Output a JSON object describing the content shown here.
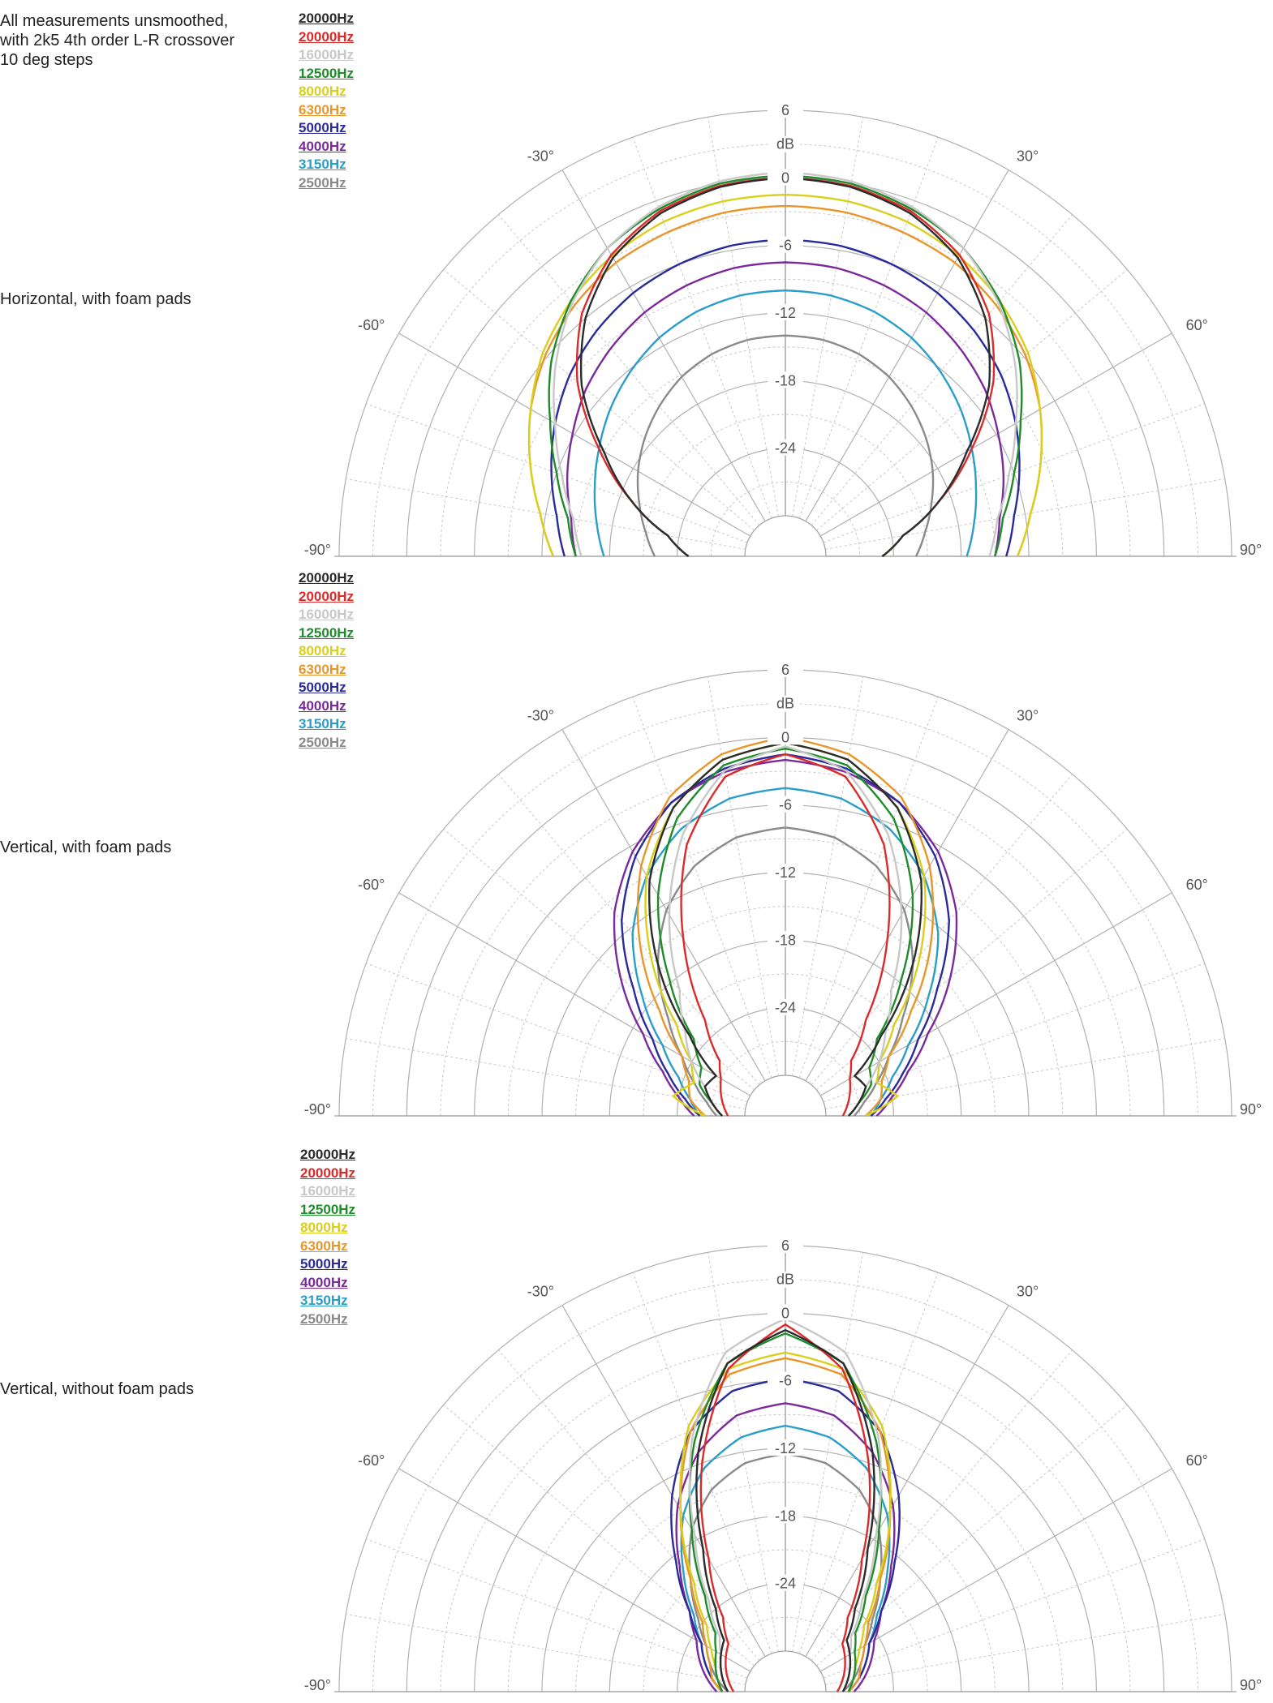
{
  "notes": {
    "line1": "All measurements unsmoothed,",
    "line2": "with 2k5 4th order L-R crossover",
    "line3": "10 deg steps"
  },
  "legend_entries": [
    {
      "label": "20000Hz",
      "color": "#2b2b2b"
    },
    {
      "label": "20000Hz",
      "color": "#d92b2b"
    },
    {
      "label": "16000Hz",
      "color": "#c8c8c8"
    },
    {
      "label": "12500Hz",
      "color": "#1e8c2a"
    },
    {
      "label": "8000Hz",
      "color": "#d9cf1c"
    },
    {
      "label": "6300Hz",
      "color": "#e8962a"
    },
    {
      "label": "5000Hz",
      "color": "#2a2a9a"
    },
    {
      "label": "4000Hz",
      "color": "#7a2a9a"
    },
    {
      "label": "3150Hz",
      "color": "#2a9ec8"
    },
    {
      "label": "2500Hz",
      "color": "#8a8a8a"
    }
  ],
  "chart_data": [
    {
      "type": "polar",
      "section_label": "Horizontal, with foam pads",
      "unit_label": "dB",
      "radial_range": [
        -30,
        6
      ],
      "radial_ticks": [
        "6",
        "0",
        "-6",
        "-12",
        "-18",
        "-24"
      ],
      "angle_range": [
        -90,
        90
      ],
      "angle_step": 10,
      "angle_labels": [
        "-90°",
        "-60°",
        "-30°",
        "30°",
        "60°",
        "90°"
      ],
      "grid": true,
      "series": [
        {
          "name": "20000Hz",
          "color": "#2b2b2b",
          "angles": [
            0,
            10,
            20,
            30,
            40,
            50,
            60,
            70,
            80,
            90
          ],
          "values": [
            0.0,
            -0.3,
            -1.2,
            -3.0,
            -6.0,
            -10.0,
            -15.0,
            -19.0,
            -23.0,
            -25.0
          ]
        },
        {
          "name": "20000Hz",
          "color": "#d92b2b",
          "angles": [
            0,
            10,
            20,
            30,
            40,
            50,
            60,
            70,
            80,
            90
          ],
          "values": [
            0.0,
            -0.2,
            -1.0,
            -2.7,
            -5.5,
            -9.5,
            -14.5,
            -19.0,
            -23.0,
            -25.0
          ]
        },
        {
          "name": "16000Hz",
          "color": "#c8c8c8",
          "angles": [
            0,
            10,
            20,
            30,
            40,
            50,
            60,
            70,
            80,
            90
          ],
          "values": [
            0.5,
            0.2,
            -0.6,
            -2.0,
            -4.2,
            -7.0,
            -10.0,
            -12.5,
            -14.5,
            -15.5
          ]
        },
        {
          "name": "12500Hz",
          "color": "#1e8c2a",
          "angles": [
            0,
            10,
            20,
            30,
            40,
            50,
            60,
            70,
            80,
            90
          ],
          "values": [
            0.2,
            0.0,
            -0.8,
            -2.0,
            -4.0,
            -6.5,
            -9.5,
            -12.0,
            -14.0,
            -15.0
          ]
        },
        {
          "name": "8000Hz",
          "color": "#d9cf1c",
          "angles": [
            0,
            10,
            20,
            30,
            40,
            50,
            60,
            70,
            80,
            90
          ],
          "values": [
            -1.5,
            -1.6,
            -2.0,
            -2.8,
            -4.0,
            -5.5,
            -7.5,
            -9.5,
            -11.5,
            -13.0
          ]
        },
        {
          "name": "6300Hz",
          "color": "#e8962a",
          "angles": [
            0,
            10,
            20,
            30,
            40,
            50,
            60,
            70,
            80,
            90
          ],
          "values": [
            -2.5,
            -2.6,
            -3.0,
            -3.5,
            -4.5,
            -5.8,
            -7.5,
            -9.5,
            -11.5,
            -13.0
          ]
        },
        {
          "name": "5000Hz",
          "color": "#2a2a9a",
          "angles": [
            0,
            10,
            20,
            30,
            40,
            50,
            60,
            70,
            80,
            90
          ],
          "values": [
            -5.5,
            -5.6,
            -6.0,
            -6.6,
            -7.5,
            -8.6,
            -10.0,
            -11.5,
            -13.0,
            -14.0
          ]
        },
        {
          "name": "4000Hz",
          "color": "#7a2a9a",
          "angles": [
            0,
            10,
            20,
            30,
            40,
            50,
            60,
            70,
            80,
            90
          ],
          "values": [
            -7.5,
            -7.6,
            -8.0,
            -8.6,
            -9.5,
            -10.5,
            -11.8,
            -13.0,
            -14.3,
            -15.0
          ]
        },
        {
          "name": "3150Hz",
          "color": "#2a9ec8",
          "angles": [
            0,
            10,
            20,
            30,
            40,
            50,
            60,
            70,
            80,
            90
          ],
          "values": [
            -10.0,
            -10.1,
            -10.5,
            -11.2,
            -12.2,
            -13.3,
            -14.5,
            -15.6,
            -16.6,
            -17.5
          ]
        },
        {
          "name": "2500Hz",
          "color": "#8a8a8a",
          "angles": [
            0,
            10,
            20,
            30,
            40,
            50,
            60,
            70,
            80,
            90
          ],
          "values": [
            -14.0,
            -14.1,
            -14.5,
            -15.2,
            -16.2,
            -17.3,
            -18.5,
            -19.8,
            -21.0,
            -22.0
          ]
        }
      ]
    },
    {
      "type": "polar",
      "section_label": "Vertical, with foam pads",
      "unit_label": "dB",
      "radial_range": [
        -30,
        6
      ],
      "radial_ticks": [
        "6",
        "0",
        "-6",
        "-12",
        "-18",
        "-24"
      ],
      "angle_range": [
        -90,
        90
      ],
      "angle_step": 10,
      "angle_labels": [
        "-90°",
        "-60°",
        "-30°",
        "30°",
        "60°",
        "90°"
      ],
      "grid": true,
      "series": [
        {
          "name": "20000Hz",
          "color": "#2b2b2b",
          "angles": [
            0,
            10,
            20,
            30,
            40,
            50,
            60,
            70,
            80,
            90
          ],
          "values": [
            -0.5,
            -1.5,
            -4.5,
            -9.5,
            -16.0,
            -22.5,
            -26.5,
            -26.0,
            -27.0,
            -28.0
          ]
        },
        {
          "name": "20000Hz",
          "color": "#d92b2b",
          "angles": [
            0,
            10,
            20,
            30,
            40,
            50,
            60,
            70,
            80,
            90
          ],
          "values": [
            -1.5,
            -3.0,
            -8.0,
            -15.5,
            -22.5,
            -26.0,
            -27.0,
            -27.5,
            -28.0,
            -28.5
          ]
        },
        {
          "name": "16000Hz",
          "color": "#c8c8c8",
          "angles": [
            0,
            10,
            20,
            30,
            40,
            50,
            60,
            70,
            80,
            90
          ],
          "values": [
            -0.8,
            -2.5,
            -7.0,
            -13.0,
            -19.0,
            -22.0,
            -24.0,
            -26.0,
            -27.0,
            -28.0
          ]
        },
        {
          "name": "12500Hz",
          "color": "#1e8c2a",
          "angles": [
            0,
            10,
            20,
            30,
            40,
            50,
            60,
            70,
            80,
            90
          ],
          "values": [
            -1.0,
            -2.0,
            -5.5,
            -11.0,
            -17.5,
            -23.0,
            -25.0,
            -25.5,
            -27.0,
            -28.0
          ]
        },
        {
          "name": "8000Hz",
          "color": "#d9cf1c",
          "angles": [
            0,
            10,
            20,
            30,
            40,
            50,
            60,
            70,
            80,
            90
          ],
          "values": [
            -0.5,
            -1.5,
            -4.5,
            -9.0,
            -15.0,
            -21.0,
            -24.0,
            -25.0,
            -23.5,
            -26.5
          ]
        },
        {
          "name": "6300Hz",
          "color": "#e8962a",
          "angles": [
            0,
            10,
            20,
            30,
            40,
            50,
            60,
            70,
            80,
            90
          ],
          "values": [
            0.0,
            -1.0,
            -3.5,
            -8.0,
            -13.5,
            -19.0,
            -23.0,
            -24.5,
            -25.0,
            -26.5
          ]
        },
        {
          "name": "5000Hz",
          "color": "#2a2a9a",
          "angles": [
            0,
            10,
            20,
            30,
            40,
            50,
            60,
            70,
            80,
            90
          ],
          "values": [
            -1.5,
            -2.3,
            -4.0,
            -7.0,
            -11.0,
            -16.0,
            -20.0,
            -22.5,
            -24.5,
            -26.0
          ]
        },
        {
          "name": "4000Hz",
          "color": "#7a2a9a",
          "angles": [
            0,
            10,
            20,
            30,
            40,
            50,
            60,
            70,
            80,
            90
          ],
          "values": [
            -2.0,
            -2.6,
            -4.0,
            -6.5,
            -10.0,
            -14.5,
            -19.0,
            -22.0,
            -24.0,
            -25.5
          ]
        },
        {
          "name": "3150Hz",
          "color": "#2a9ec8",
          "angles": [
            0,
            10,
            20,
            30,
            40,
            50,
            60,
            70,
            80,
            90
          ],
          "values": [
            -4.5,
            -5.0,
            -6.5,
            -9.0,
            -12.5,
            -17.0,
            -21.0,
            -23.5,
            -25.0,
            -26.0
          ]
        },
        {
          "name": "2500Hz",
          "color": "#8a8a8a",
          "angles": [
            0,
            10,
            20,
            30,
            40,
            50,
            60,
            70,
            80,
            90
          ],
          "values": [
            -8.0,
            -8.5,
            -10.0,
            -12.5,
            -16.0,
            -20.0,
            -23.0,
            -25.0,
            -26.5,
            -27.5
          ]
        }
      ]
    },
    {
      "type": "polar",
      "section_label": "Vertical, without foam pads",
      "unit_label": "dB",
      "radial_range": [
        -30,
        6
      ],
      "radial_ticks": [
        "6",
        "0",
        "-6",
        "-12",
        "-18",
        "-24"
      ],
      "angle_range": [
        -90,
        90
      ],
      "angle_step": 10,
      "angle_labels": [
        "-90°",
        "-60°",
        "-30°",
        "30°",
        "60°",
        "90°"
      ],
      "grid": true,
      "series": [
        {
          "name": "20000Hz",
          "color": "#2b2b2b",
          "angles": [
            0,
            10,
            20,
            30,
            40,
            50,
            60,
            70,
            80,
            90
          ],
          "values": [
            -1.5,
            -4.0,
            -11.0,
            -19.0,
            -24.0,
            -26.5,
            -27.0,
            -27.5,
            -28.0,
            -28.5
          ]
        },
        {
          "name": "20000Hz",
          "color": "#d92b2b",
          "angles": [
            0,
            10,
            20,
            30,
            40,
            50,
            60,
            70,
            80,
            90
          ],
          "values": [
            -1.0,
            -4.5,
            -12.0,
            -20.0,
            -25.0,
            -27.0,
            -27.5,
            -28.0,
            -28.5,
            -29.0
          ]
        },
        {
          "name": "16000Hz",
          "color": "#c8c8c8",
          "angles": [
            0,
            10,
            20,
            30,
            40,
            50,
            60,
            70,
            80,
            90
          ],
          "values": [
            -0.5,
            -3.0,
            -9.5,
            -17.5,
            -23.0,
            -26.0,
            -27.0,
            -27.5,
            -28.0,
            -28.5
          ]
        },
        {
          "name": "12500Hz",
          "color": "#1e8c2a",
          "angles": [
            0,
            10,
            20,
            30,
            40,
            50,
            60,
            70,
            80,
            90
          ],
          "values": [
            -1.8,
            -4.0,
            -10.0,
            -17.0,
            -22.5,
            -25.5,
            -26.5,
            -27.0,
            -27.5,
            -28.0
          ]
        },
        {
          "name": "8000Hz",
          "color": "#d9cf1c",
          "angles": [
            0,
            10,
            20,
            30,
            40,
            50,
            60,
            70,
            80,
            90
          ],
          "values": [
            -3.5,
            -4.5,
            -8.5,
            -15.0,
            -21.0,
            -24.5,
            -26.0,
            -27.0,
            -27.5,
            -28.0
          ]
        },
        {
          "name": "6300Hz",
          "color": "#e8962a",
          "angles": [
            0,
            10,
            20,
            30,
            40,
            50,
            60,
            70,
            80,
            90
          ],
          "values": [
            -4.0,
            -5.0,
            -9.0,
            -15.0,
            -20.5,
            -24.0,
            -25.5,
            -26.5,
            -27.0,
            -28.0
          ]
        },
        {
          "name": "5000Hz",
          "color": "#2a2a9a",
          "angles": [
            0,
            10,
            20,
            30,
            40,
            50,
            60,
            70,
            80,
            90
          ],
          "values": [
            -5.8,
            -6.5,
            -9.0,
            -13.5,
            -18.5,
            -22.5,
            -25.0,
            -26.0,
            -27.0,
            -28.0
          ]
        },
        {
          "name": "4000Hz",
          "color": "#7a2a9a",
          "angles": [
            0,
            10,
            20,
            30,
            40,
            50,
            60,
            70,
            80,
            90
          ],
          "values": [
            -8.0,
            -8.7,
            -11.0,
            -14.5,
            -19.0,
            -22.5,
            -24.5,
            -25.5,
            -26.5,
            -27.5
          ]
        },
        {
          "name": "3150Hz",
          "color": "#2a9ec8",
          "angles": [
            0,
            10,
            20,
            30,
            40,
            50,
            60,
            70,
            80,
            90
          ],
          "values": [
            -10.0,
            -10.7,
            -12.5,
            -15.5,
            -19.5,
            -23.0,
            -25.0,
            -26.0,
            -27.0,
            -28.0
          ]
        },
        {
          "name": "2500Hz",
          "color": "#8a8a8a",
          "angles": [
            0,
            10,
            20,
            30,
            40,
            50,
            60,
            70,
            80,
            90
          ],
          "values": [
            -12.5,
            -13.0,
            -14.5,
            -17.0,
            -20.5,
            -23.5,
            -25.5,
            -26.5,
            -27.5,
            -28.5
          ]
        }
      ]
    }
  ]
}
